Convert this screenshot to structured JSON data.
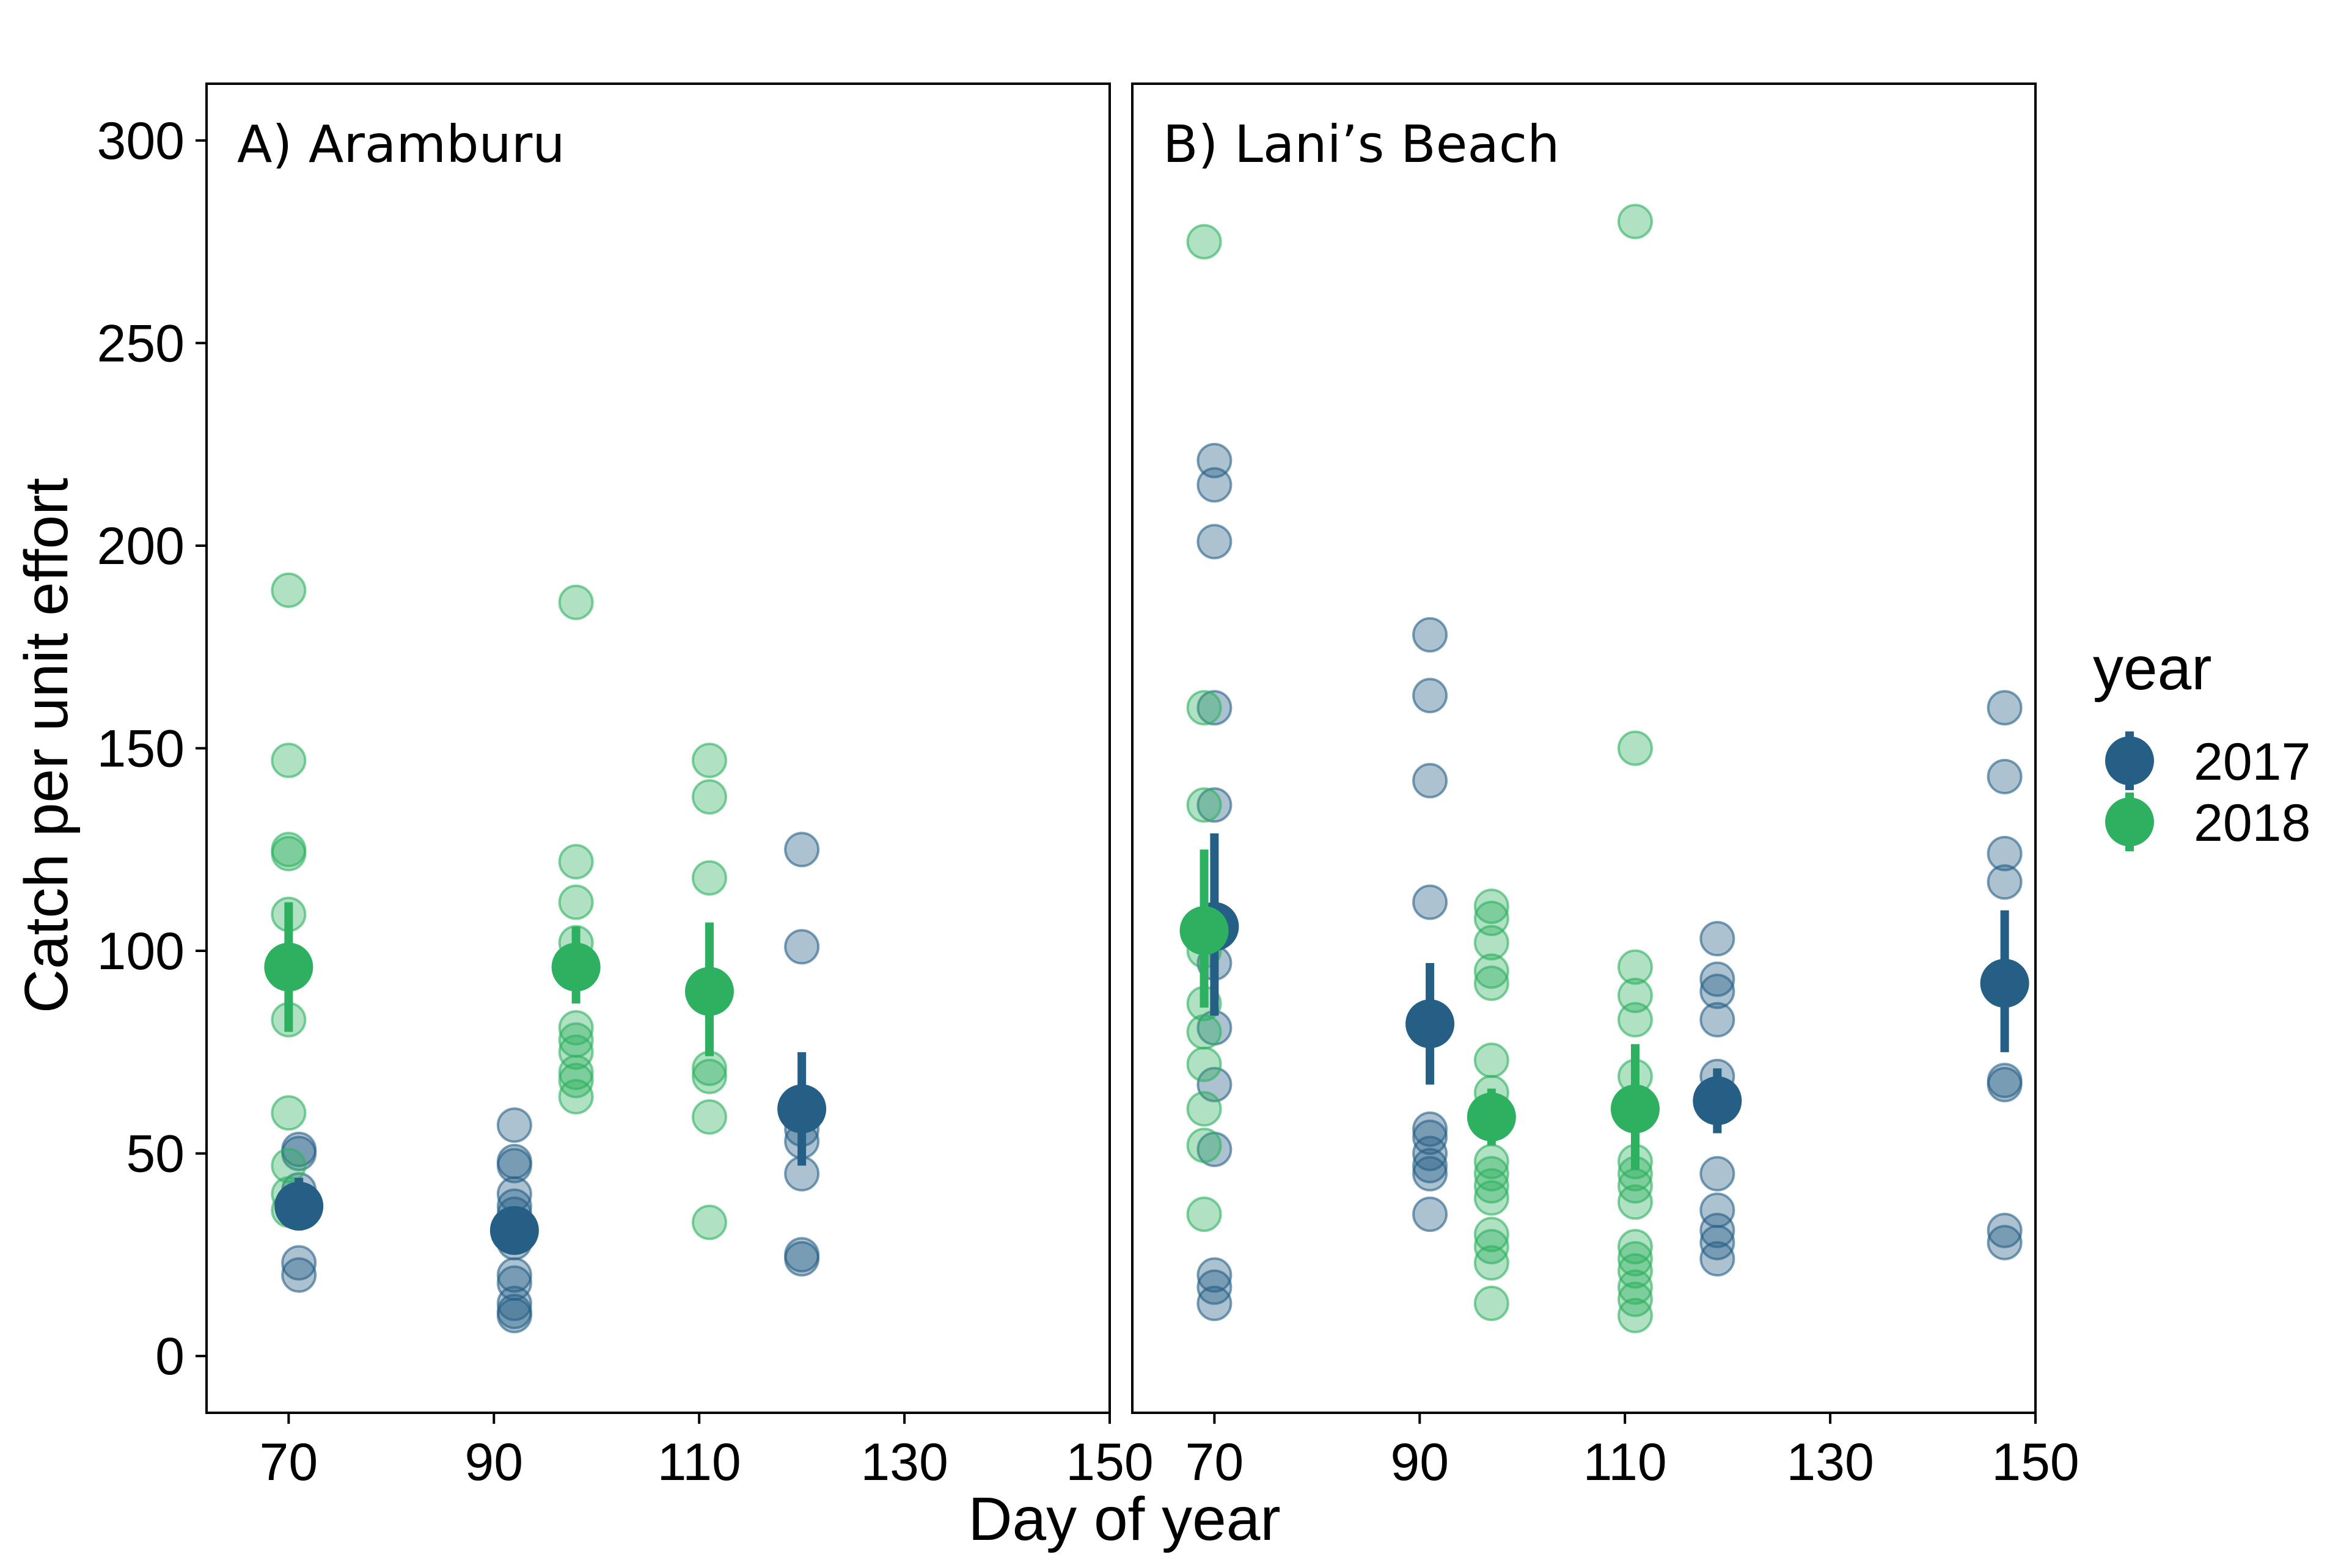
{
  "chart_data": {
    "type": "scatter",
    "xlabel": "Day of year",
    "ylabel": "Catch per unit effort",
    "xlim": [
      62,
      150
    ],
    "ylim": [
      -14,
      314
    ],
    "x_ticks": [
      70,
      90,
      110,
      130,
      150
    ],
    "y_ticks": [
      0,
      50,
      100,
      150,
      200,
      250,
      300
    ],
    "grid": false,
    "legend": {
      "title": "year",
      "position": "right",
      "entries": [
        {
          "label": "2017",
          "color": "#255F85"
        },
        {
          "label": "2018",
          "color": "#2DB05F"
        }
      ]
    },
    "panels": [
      {
        "title": "A) Aramburu",
        "series": [
          {
            "name": "2017",
            "color": "#255F85",
            "points": [
              [
                71,
                51
              ],
              [
                71,
                50
              ],
              [
                71,
                41
              ],
              [
                71,
                37
              ],
              [
                71,
                23
              ],
              [
                71,
                20
              ],
              [
                92,
                57
              ],
              [
                92,
                48
              ],
              [
                92,
                47
              ],
              [
                92,
                40
              ],
              [
                92,
                37
              ],
              [
                92,
                35
              ],
              [
                92,
                32
              ],
              [
                92,
                30
              ],
              [
                92,
                28
              ],
              [
                92,
                20
              ],
              [
                92,
                18
              ],
              [
                92,
                13
              ],
              [
                92,
                11
              ],
              [
                92,
                10
              ],
              [
                120,
                125
              ],
              [
                120,
                101
              ],
              [
                120,
                56
              ],
              [
                120,
                53
              ],
              [
                120,
                45
              ],
              [
                120,
                25
              ],
              [
                120,
                24
              ]
            ],
            "means": [
              {
                "x": 71,
                "mean": 37,
                "low": 31,
                "high": 44
              },
              {
                "x": 92,
                "mean": 31,
                "low": 27,
                "high": 35
              },
              {
                "x": 120,
                "mean": 61,
                "low": 47,
                "high": 75
              }
            ]
          },
          {
            "name": "2018",
            "color": "#2DB05F",
            "points": [
              [
                70,
                189
              ],
              [
                70,
                147
              ],
              [
                70,
                125
              ],
              [
                70,
                124
              ],
              [
                70,
                109
              ],
              [
                70,
                83
              ],
              [
                70,
                60
              ],
              [
                70,
                47
              ],
              [
                70,
                40
              ],
              [
                70,
                36
              ],
              [
                98,
                186
              ],
              [
                98,
                122
              ],
              [
                98,
                112
              ],
              [
                98,
                102
              ],
              [
                98,
                81
              ],
              [
                98,
                78
              ],
              [
                98,
                75
              ],
              [
                98,
                70
              ],
              [
                98,
                68
              ],
              [
                98,
                64
              ],
              [
                111,
                147
              ],
              [
                111,
                138
              ],
              [
                111,
                118
              ],
              [
                111,
                71
              ],
              [
                111,
                69
              ],
              [
                111,
                59
              ],
              [
                111,
                33
              ]
            ],
            "means": [
              {
                "x": 70,
                "mean": 96,
                "low": 80,
                "high": 112
              },
              {
                "x": 98,
                "mean": 96,
                "low": 87,
                "high": 106
              },
              {
                "x": 111,
                "mean": 90,
                "low": 74,
                "high": 107
              }
            ]
          }
        ]
      },
      {
        "title": "B) Lani’s Beach",
        "series": [
          {
            "name": "2017",
            "color": "#255F85",
            "points": [
              [
                70,
                221
              ],
              [
                70,
                215
              ],
              [
                70,
                201
              ],
              [
                70,
                160
              ],
              [
                70,
                136
              ],
              [
                70,
                97
              ],
              [
                70,
                81
              ],
              [
                70,
                67
              ],
              [
                70,
                51
              ],
              [
                70,
                20
              ],
              [
                70,
                17
              ],
              [
                70,
                13
              ],
              [
                91,
                178
              ],
              [
                91,
                163
              ],
              [
                91,
                142
              ],
              [
                91,
                112
              ],
              [
                91,
                56
              ],
              [
                91,
                54
              ],
              [
                91,
                50
              ],
              [
                91,
                47
              ],
              [
                91,
                45
              ],
              [
                91,
                35
              ],
              [
                119,
                103
              ],
              [
                119,
                93
              ],
              [
                119,
                90
              ],
              [
                119,
                83
              ],
              [
                119,
                69
              ],
              [
                119,
                45
              ],
              [
                119,
                36
              ],
              [
                119,
                31
              ],
              [
                119,
                28
              ],
              [
                119,
                24
              ],
              [
                147,
                160
              ],
              [
                147,
                143
              ],
              [
                147,
                124
              ],
              [
                147,
                117
              ],
              [
                147,
                68
              ],
              [
                147,
                67
              ],
              [
                147,
                31
              ],
              [
                147,
                28
              ]
            ],
            "means": [
              {
                "x": 70,
                "mean": 106,
                "low": 84,
                "high": 129
              },
              {
                "x": 91,
                "mean": 82,
                "low": 67,
                "high": 97
              },
              {
                "x": 119,
                "mean": 63,
                "low": 55,
                "high": 71
              },
              {
                "x": 147,
                "mean": 92,
                "low": 75,
                "high": 110
              }
            ]
          },
          {
            "name": "2018",
            "color": "#2DB05F",
            "points": [
              [
                69,
                275
              ],
              [
                69,
                160
              ],
              [
                69,
                136
              ],
              [
                69,
                104
              ],
              [
                69,
                100
              ],
              [
                69,
                87
              ],
              [
                69,
                80
              ],
              [
                69,
                72
              ],
              [
                69,
                61
              ],
              [
                69,
                52
              ],
              [
                69,
                35
              ],
              [
                97,
                111
              ],
              [
                97,
                108
              ],
              [
                97,
                102
              ],
              [
                97,
                95
              ],
              [
                97,
                92
              ],
              [
                97,
                73
              ],
              [
                97,
                65
              ],
              [
                97,
                48
              ],
              [
                97,
                45
              ],
              [
                97,
                42
              ],
              [
                97,
                39
              ],
              [
                97,
                30
              ],
              [
                97,
                27
              ],
              [
                97,
                23
              ],
              [
                97,
                13
              ],
              [
                111,
                280
              ],
              [
                111,
                150
              ],
              [
                111,
                96
              ],
              [
                111,
                89
              ],
              [
                111,
                83
              ],
              [
                111,
                69
              ],
              [
                111,
                48
              ],
              [
                111,
                45
              ],
              [
                111,
                42
              ],
              [
                111,
                38
              ],
              [
                111,
                27
              ],
              [
                111,
                24
              ],
              [
                111,
                21
              ],
              [
                111,
                17
              ],
              [
                111,
                14
              ],
              [
                111,
                10
              ]
            ],
            "means": [
              {
                "x": 69,
                "mean": 105,
                "low": 86,
                "high": 125
              },
              {
                "x": 97,
                "mean": 59,
                "low": 52,
                "high": 66
              },
              {
                "x": 111,
                "mean": 61,
                "low": 46,
                "high": 77
              }
            ]
          }
        ]
      }
    ]
  }
}
